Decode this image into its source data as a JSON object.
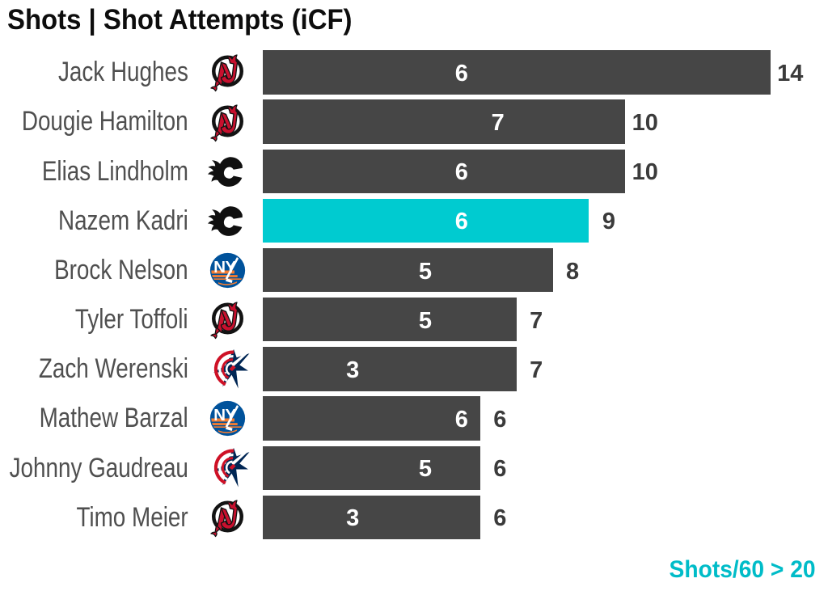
{
  "title": "Shots | Shot Attempts (iCF)",
  "footnote": {
    "text": "Shots/60 > 20",
    "color": "#00bcc8"
  },
  "colors": {
    "bar": "#464646",
    "highlight": "#00cbd0",
    "inside_label": "#ffffff",
    "outside_label": "#3b3b3b",
    "name": "#4f4f4f",
    "title": "#0d0d0d"
  },
  "chart_data": {
    "type": "bar",
    "orientation": "horizontal",
    "title": "Shots | Shot Attempts (iCF)",
    "categories": [
      "Jack Hughes",
      "Dougie Hamilton",
      "Elias Lindholm",
      "Nazem Kadri",
      "Brock Nelson",
      "Tyler Toffoli",
      "Zach Werenski",
      "Mathew Barzal",
      "Johnny Gaudreau",
      "Timo Meier"
    ],
    "teams": [
      "NJD",
      "NJD",
      "CGY",
      "CGY",
      "NYI",
      "NJD",
      "CBJ",
      "NYI",
      "CBJ",
      "NJD"
    ],
    "series": [
      {
        "name": "Shots",
        "values": [
          6,
          7,
          6,
          6,
          5,
          5,
          3,
          6,
          5,
          3
        ],
        "label_position": "inside-end"
      },
      {
        "name": "Shot Attempts (iCF)",
        "values": [
          14,
          10,
          10,
          9,
          8,
          7,
          7,
          6,
          6,
          6
        ],
        "label_position": "outside-end"
      }
    ],
    "highlight_index": 3,
    "highlight_player": "Nazem Kadri",
    "xlim": [
      0,
      14
    ],
    "legend": "none",
    "grid": false,
    "footnote": "Shots/60 > 20"
  }
}
